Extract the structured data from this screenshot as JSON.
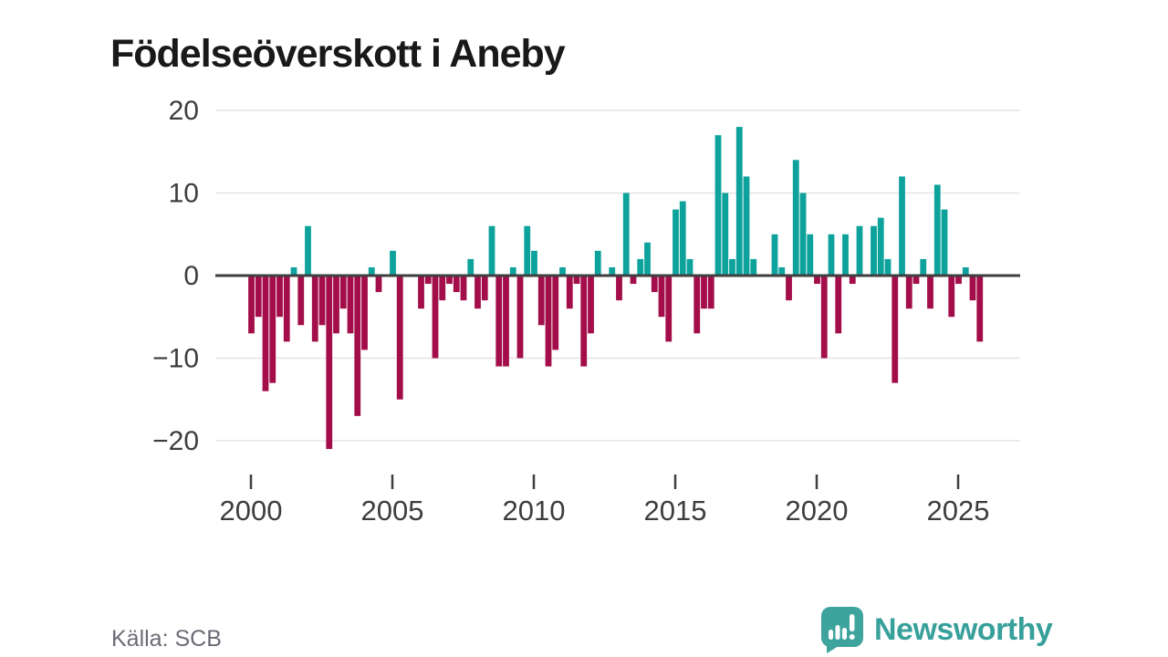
{
  "title": "Födelseöverskott i Aneby",
  "footer": {
    "source": "Källa: SCB"
  },
  "logo": {
    "text": "Newsworthy",
    "icon": "newsworthy-bubble-barchart-icon"
  },
  "colors": {
    "positive": "#0DA29C",
    "negative": "#A30E4A",
    "grid": "#e4e4e4",
    "zero_line": "#3F3F3F",
    "axis_text": "#3d3d3d",
    "title_text": "#191919",
    "source_text": "#6b6b76",
    "logo_teal": "#38a09b"
  },
  "chart_data": {
    "type": "bar",
    "title": "Födelseöverskott i Aneby",
    "xlabel": "",
    "ylabel": "",
    "period": "quarterly",
    "start": "2000-Q1",
    "end": "2025-Q4",
    "x_ticks": [
      2000,
      2005,
      2010,
      2015,
      2020,
      2025
    ],
    "y_ticks": [
      20,
      10,
      0,
      -10,
      -20
    ],
    "ylim": [
      -22,
      21
    ],
    "grid": true,
    "legend": false,
    "values": [
      -7,
      -5,
      -14,
      -13,
      -5,
      -8,
      1,
      -6,
      6,
      -8,
      -6,
      -21,
      -7,
      -4,
      -7,
      -17,
      -9,
      1,
      -2,
      0,
      3,
      -15,
      0,
      0,
      -4,
      -1,
      -10,
      -3,
      -1,
      -2,
      -3,
      2,
      -4,
      -3,
      6,
      -11,
      -11,
      1,
      -10,
      6,
      3,
      -6,
      -11,
      -9,
      1,
      -4,
      -1,
      -11,
      -7,
      3,
      0,
      1,
      -3,
      10,
      -1,
      2,
      4,
      -2,
      -5,
      -8,
      8,
      9,
      2,
      -7,
      -4,
      -4,
      17,
      10,
      2,
      18,
      12,
      2,
      0,
      0,
      5,
      1,
      -3,
      14,
      10,
      5,
      -1,
      -10,
      5,
      -7,
      5,
      -1,
      6,
      0,
      6,
      7,
      2,
      -13,
      12,
      -4,
      -1,
      2,
      -4,
      11,
      8,
      -5,
      -1,
      1,
      -3,
      -8
    ]
  }
}
